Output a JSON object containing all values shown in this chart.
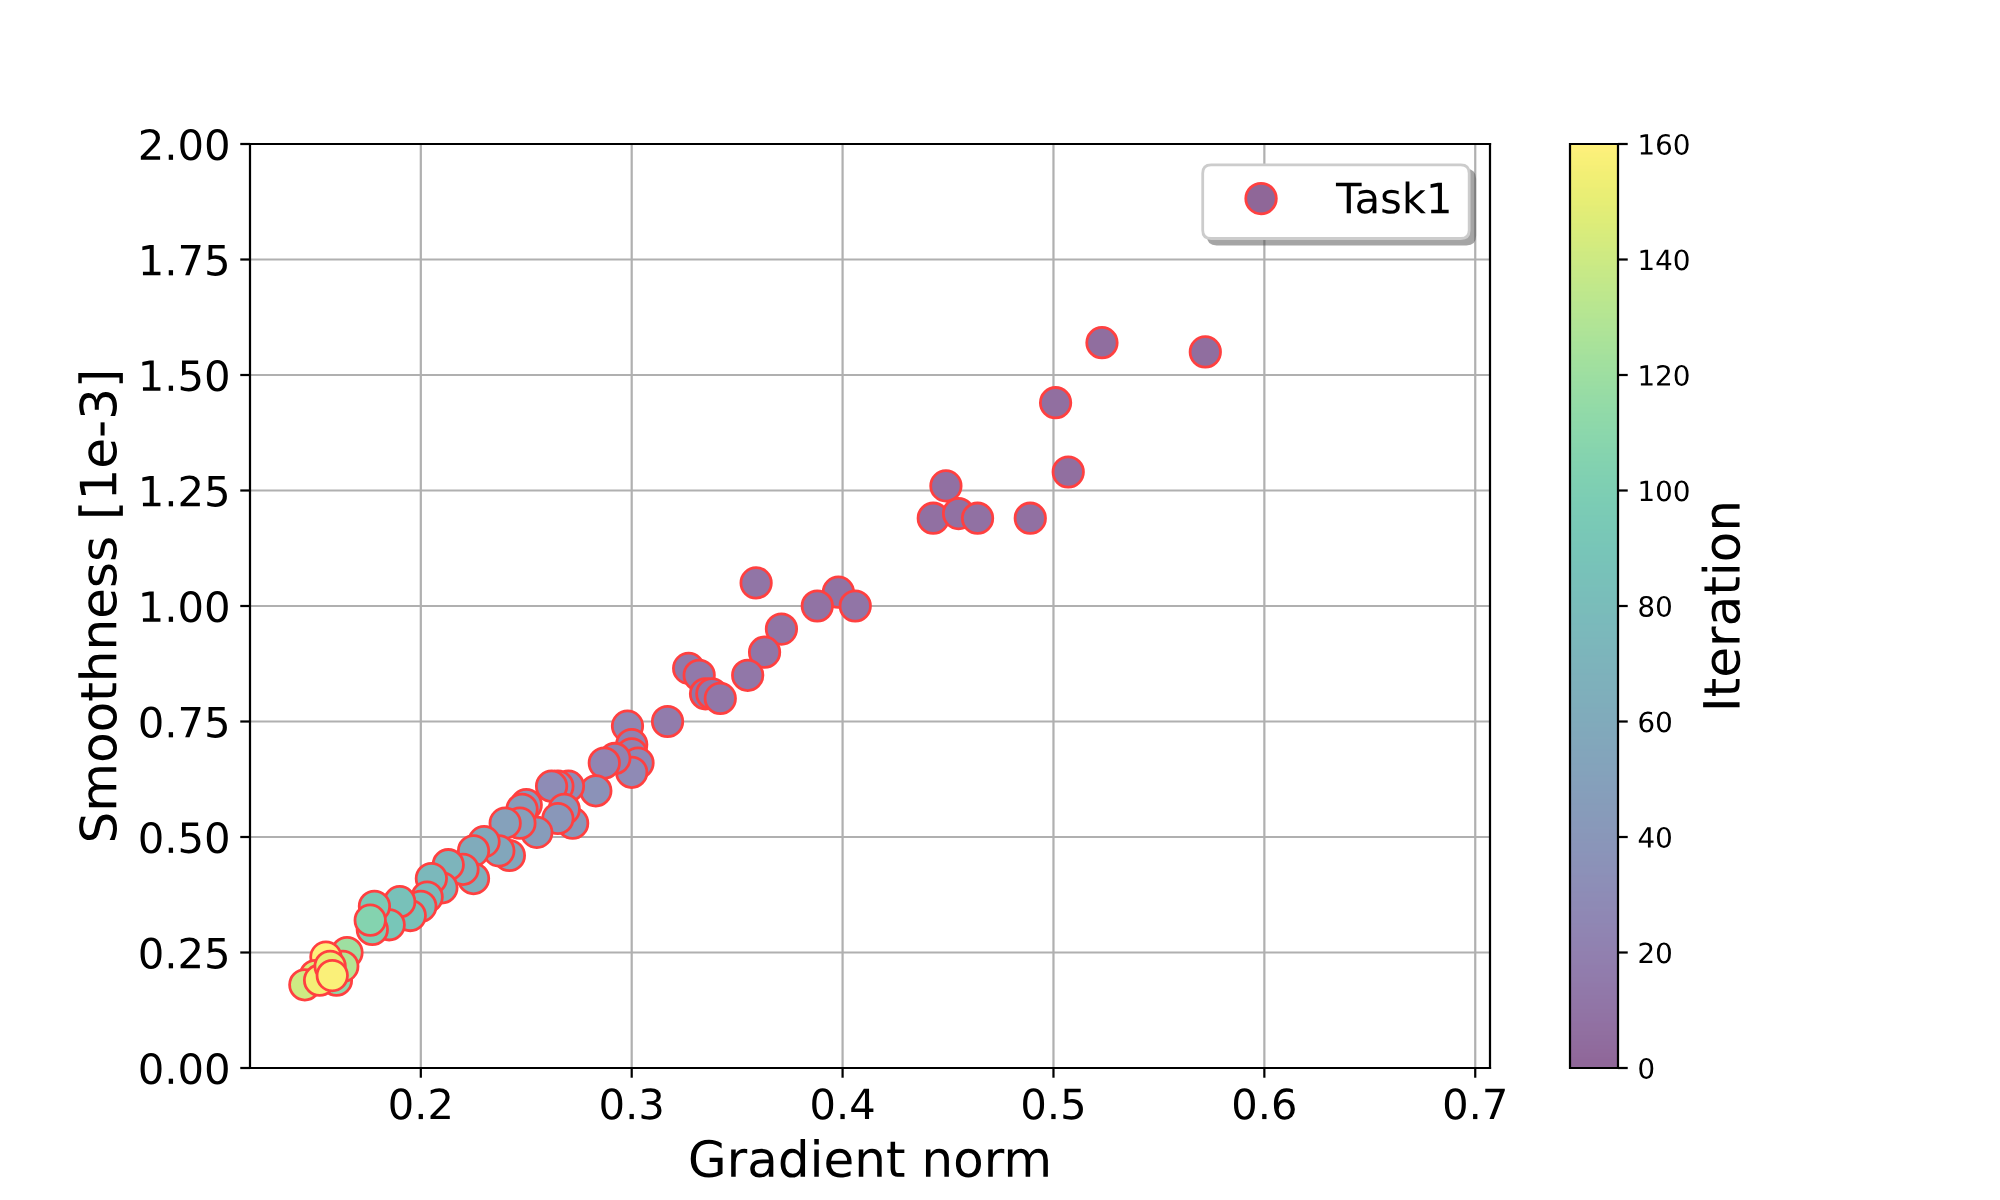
{
  "chart_data": {
    "type": "scatter",
    "xlabel": "Gradient norm",
    "ylabel": "Smoothness [1e-3]",
    "clabel": "Iteration",
    "xlim": [
      0.119,
      0.707
    ],
    "ylim": [
      0,
      2
    ],
    "xticks": [
      {
        "value": 0.2,
        "label": "0.2"
      },
      {
        "value": 0.3,
        "label": "0.3"
      },
      {
        "value": 0.4,
        "label": "0.4"
      },
      {
        "value": 0.5,
        "label": "0.5"
      },
      {
        "value": 0.6,
        "label": "0.6"
      },
      {
        "value": 0.7,
        "label": "0.7"
      }
    ],
    "yticks": [
      {
        "value": 0,
        "label": "0.00"
      },
      {
        "value": 0.25,
        "label": "0.25"
      },
      {
        "value": 0.5,
        "label": "0.50"
      },
      {
        "value": 0.75,
        "label": "0.75"
      },
      {
        "value": 1,
        "label": "1.00"
      },
      {
        "value": 1.25,
        "label": "1.25"
      },
      {
        "value": 1.5,
        "label": "1.50"
      },
      {
        "value": 1.75,
        "label": "1.75"
      },
      {
        "value": 2,
        "label": "2.00"
      }
    ],
    "clim": [
      0,
      160
    ],
    "cticks": [
      0,
      20,
      40,
      60,
      80,
      100,
      120,
      140,
      160
    ],
    "grid": true,
    "legend": "top right",
    "marker": "circle",
    "series": [
      {
        "name": "Task1",
        "x": [
          0.572,
          0.523,
          0.501,
          0.507,
          0.489,
          0.449,
          0.443,
          0.455,
          0.464,
          0.359,
          0.398,
          0.388,
          0.406,
          0.371,
          0.363,
          0.355,
          0.327,
          0.332,
          0.335,
          0.338,
          0.342,
          0.317,
          0.298,
          0.3,
          0.3,
          0.303,
          0.3,
          0.292,
          0.287,
          0.283,
          0.27,
          0.265,
          0.262,
          0.272,
          0.268,
          0.265,
          0.255,
          0.25,
          0.248,
          0.247,
          0.24,
          0.242,
          0.237,
          0.23,
          0.225,
          0.225,
          0.22,
          0.213,
          0.21,
          0.205,
          0.203,
          0.2,
          0.195,
          0.19,
          0.185,
          0.178,
          0.177,
          0.176,
          0.165,
          0.16,
          0.163,
          0.155,
          0.15,
          0.145,
          0.152,
          0.157,
          0.158
        ],
        "values": [
          1.55,
          1.57,
          1.44,
          1.29,
          1.19,
          1.26,
          1.19,
          1.2,
          1.19,
          1.05,
          1.03,
          1.0,
          1.0,
          0.95,
          0.9,
          0.85,
          0.865,
          0.85,
          0.81,
          0.81,
          0.8,
          0.75,
          0.74,
          0.7,
          0.68,
          0.66,
          0.64,
          0.67,
          0.66,
          0.6,
          0.61,
          0.61,
          0.61,
          0.53,
          0.56,
          0.54,
          0.51,
          0.57,
          0.56,
          0.53,
          0.53,
          0.46,
          0.47,
          0.49,
          0.47,
          0.41,
          0.43,
          0.44,
          0.39,
          0.41,
          0.37,
          0.35,
          0.33,
          0.36,
          0.31,
          0.35,
          0.3,
          0.32,
          0.25,
          0.19,
          0.22,
          0.24,
          0.2,
          0.18,
          0.19,
          0.22,
          0.2
        ],
        "cvalues": [
          5,
          5,
          6,
          6,
          7,
          7,
          7,
          8,
          8,
          10,
          9,
          9,
          10,
          10,
          11,
          12,
          14,
          14,
          12,
          12,
          12,
          16,
          25,
          20,
          22,
          25,
          28,
          22,
          24,
          35,
          30,
          32,
          30,
          40,
          38,
          40,
          45,
          42,
          45,
          48,
          50,
          55,
          55,
          58,
          60,
          65,
          65,
          70,
          72,
          75,
          78,
          80,
          85,
          85,
          90,
          95,
          100,
          105,
          120,
          110,
          130,
          160,
          145,
          140,
          155,
          150,
          158
        ]
      }
    ]
  }
}
